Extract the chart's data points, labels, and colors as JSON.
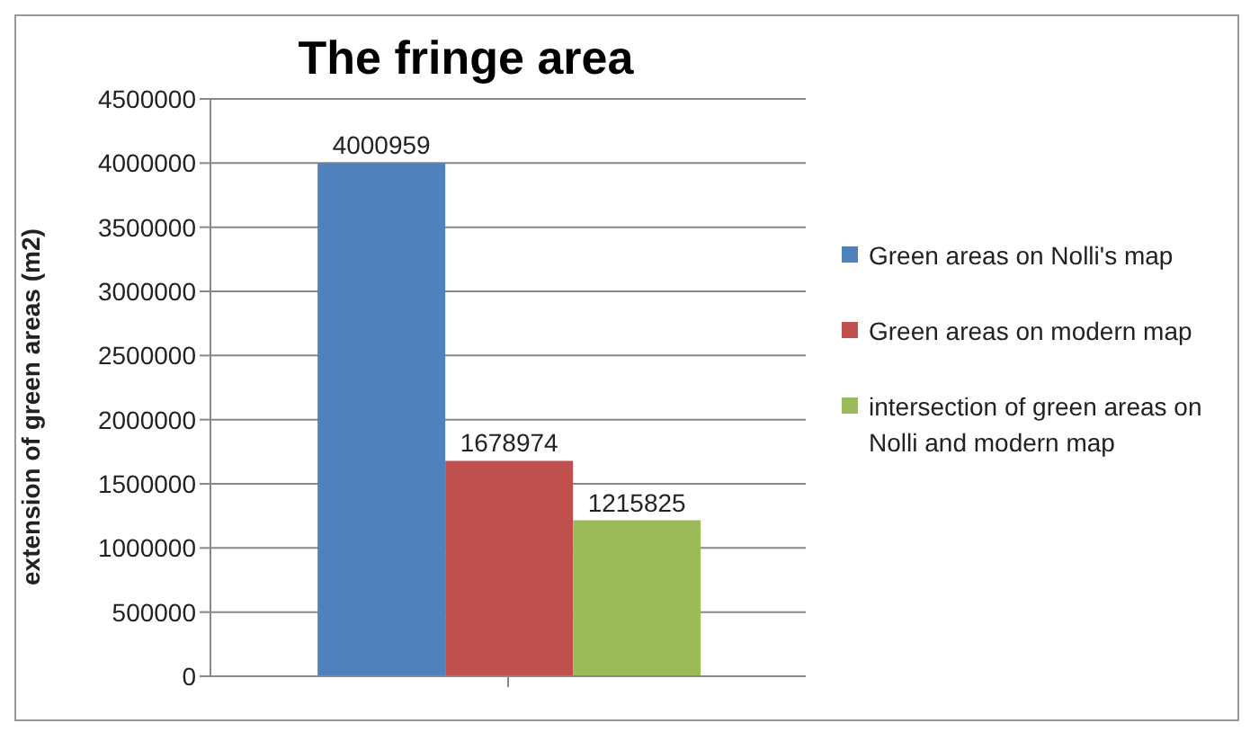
{
  "chart_data": {
    "type": "bar",
    "title": "The fringe area",
    "ylabel": "extension of green areas (m2)",
    "categories": [
      null
    ],
    "series": [
      {
        "name": "Green areas on Nolli's map",
        "color": "#4f81bd",
        "values": [
          4000959
        ]
      },
      {
        "name": "Green areas on modern map",
        "color": "#c0504d",
        "values": [
          1678974
        ]
      },
      {
        "name": "intersection of green areas on Nolli and modern map",
        "color": "#9bbb59",
        "values": [
          1215825
        ]
      }
    ],
    "ylim": [
      0,
      4500000
    ],
    "yticks": [
      0,
      500000,
      1000000,
      1500000,
      2000000,
      2500000,
      3000000,
      3500000,
      4000000,
      4500000
    ],
    "grid": "y",
    "legend": "right",
    "data_labels": true
  }
}
